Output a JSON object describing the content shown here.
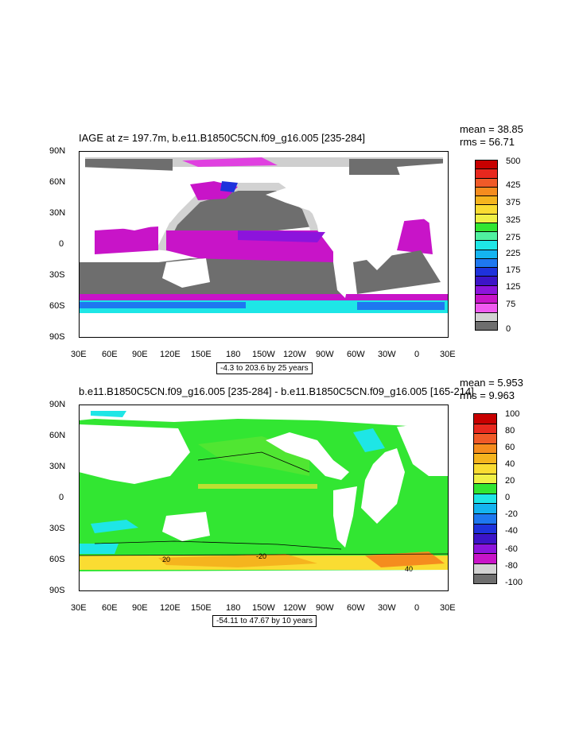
{
  "panel1": {
    "title": "IAGE at z= 197.7m, b.e11.B1850C5CN.f09_g16.005 [235-284]",
    "mean": "mean = 38.85",
    "rms": "rms = 56.71",
    "range_note": "-4.3 to 203.6 by 25 years",
    "colorbar": {
      "labels": [
        "500",
        "425",
        "375",
        "325",
        "275",
        "225",
        "175",
        "125",
        "75",
        "0"
      ],
      "colors": [
        "#c80000",
        "#e8281e",
        "#f05a28",
        "#f58c1e",
        "#f5b41e",
        "#fadc32",
        "#f0f046",
        "#32e632",
        "#50f0a0",
        "#1ee6e6",
        "#14b4f0",
        "#1e78f0",
        "#1e32dc",
        "#3c14c8",
        "#8c14dc",
        "#c814c8",
        "#f05af0",
        "#d2d2d2",
        "#6e6e6e"
      ]
    }
  },
  "panel2": {
    "title": "b.e11.B1850C5CN.f09_g16.005 [235-284] - b.e11.B1850C5CN.f09_g16.005 [165-214]",
    "mean": "mean = 5.953",
    "rms": "rms = 9.963",
    "range_note": "-54.11 to 47.67 by 10 years",
    "colorbar": {
      "labels": [
        "100",
        "80",
        "60",
        "40",
        "20",
        "0",
        "-20",
        "-40",
        "-60",
        "-80",
        "-100"
      ],
      "colors": [
        "#c80000",
        "#e8281e",
        "#f05a28",
        "#f58c1e",
        "#f5b41e",
        "#fadc32",
        "#f0f046",
        "#32e632",
        "#1ee6e6",
        "#14b4f0",
        "#1e78f0",
        "#1e32dc",
        "#3c14c8",
        "#8c14dc",
        "#c814c8",
        "#d2d2d2",
        "#6e6e6e"
      ],
      "contour_labels": [
        "20",
        "40",
        "-20"
      ]
    }
  },
  "axes": {
    "lat_labels": [
      "90N",
      "60N",
      "30N",
      "0",
      "30S",
      "60S",
      "90S"
    ],
    "lon_labels": [
      "30E",
      "60E",
      "90E",
      "120E",
      "150E",
      "180",
      "150W",
      "120W",
      "90W",
      "60W",
      "30W",
      "0",
      "30E"
    ]
  }
}
